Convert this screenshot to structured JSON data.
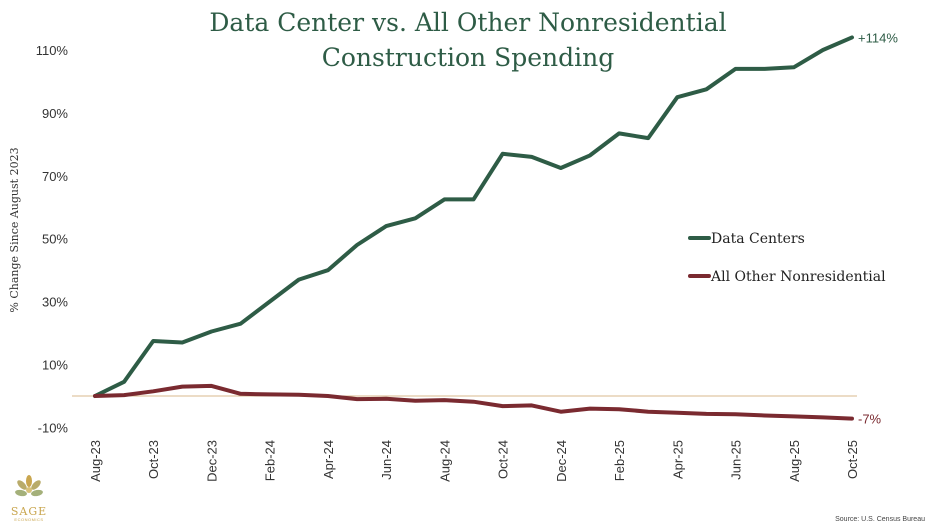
{
  "chart_data": {
    "type": "line",
    "title": [
      "Data Center vs. All Other Nonresidential",
      "Construction Spending"
    ],
    "ylabel": "% Change Since August 2023",
    "xlabel": "",
    "ylim": [
      -10,
      120
    ],
    "yticks": [
      110,
      90,
      70,
      50,
      30,
      10,
      -10
    ],
    "ytick_labels": [
      "110%",
      "90%",
      "70%",
      "50%",
      "30%",
      "10%",
      "-10%"
    ],
    "xtick_labels": [
      "Aug-23",
      "Oct-23",
      "Dec-23",
      "Feb-24",
      "Apr-24",
      "Jun-24",
      "Aug-24",
      "Oct-24",
      "Dec-24",
      "Feb-25",
      "Apr-25",
      "Jun-25",
      "Aug-25",
      "Oct-25"
    ],
    "months": 27,
    "series": [
      {
        "name": "Data Centers",
        "color": "#2e5c46",
        "values": [
          0,
          4.5,
          17.5,
          17,
          20.5,
          23,
          30,
          37,
          40,
          48,
          54,
          56.5,
          62.5,
          62.5,
          77,
          76,
          72.5,
          76.5,
          83.5,
          82,
          95,
          97.5,
          104,
          104,
          104.5,
          110,
          114
        ],
        "end_label": "+114%"
      },
      {
        "name": "All Other Nonresidential",
        "color": "#7a2a30",
        "values": [
          0,
          0.3,
          1.5,
          3,
          3.2,
          0.7,
          0.5,
          0.4,
          0,
          -1,
          -0.9,
          -1.5,
          -1.3,
          -1.8,
          -3.2,
          -3,
          -5,
          -4,
          -4.2,
          -5,
          -5.3,
          -5.7,
          -5.8,
          -6.2,
          -6.5,
          -6.8,
          -7.2
        ],
        "end_label": "-7%"
      }
    ],
    "legend": "right",
    "reference_line": 0
  },
  "source": "Source: U.S. Census Bureau",
  "logo": {
    "name": "SAGE",
    "sub": "ECONOMICS"
  }
}
